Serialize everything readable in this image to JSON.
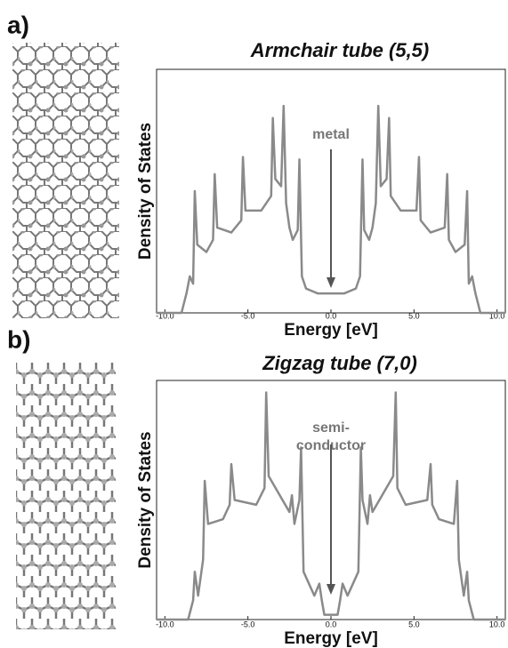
{
  "chart_data": [
    {
      "type": "line",
      "panel_label": "a)",
      "title": "Armchair tube (5,5)",
      "xlabel": "Energy [eV]",
      "ylabel": "Density of States",
      "annotation": [
        "metal"
      ],
      "xlim": [
        -10.5,
        10.5
      ],
      "ylim": [
        0,
        100
      ],
      "xticks": [
        {
          "value": -10,
          "label": "-10.0"
        },
        {
          "value": -5,
          "label": "-5.0"
        },
        {
          "value": 0,
          "label": "0.0"
        },
        {
          "value": 5,
          "label": "5.0"
        },
        {
          "value": 10,
          "label": "10.0"
        }
      ],
      "series": [
        {
          "color": "#8a8a8a",
          "x": [
            -10.5,
            -9.0,
            -8.7,
            -8.5,
            -8.3,
            -8.2,
            -8.05,
            -7.5,
            -7.1,
            -7.0,
            -6.85,
            -6.0,
            -5.4,
            -5.3,
            -5.15,
            -4.2,
            -3.6,
            -3.5,
            -3.35,
            -3.0,
            -2.85,
            -2.7,
            -2.5,
            -2.3,
            -2.0,
            -1.9,
            -1.75,
            -1.5,
            -0.8,
            0,
            0.8,
            1.5,
            1.75,
            1.9,
            2.0,
            2.3,
            2.5,
            2.7,
            2.85,
            3.0,
            3.35,
            3.5,
            3.6,
            4.2,
            5.15,
            5.3,
            5.4,
            6.0,
            6.85,
            7.0,
            7.1,
            7.5,
            8.05,
            8.2,
            8.3,
            8.5,
            8.7,
            9.0,
            10.5
          ],
          "values": [
            0,
            0,
            8,
            15,
            12,
            50,
            28,
            25,
            30,
            57,
            35,
            33,
            38,
            64,
            42,
            42,
            48,
            80,
            55,
            52,
            85,
            45,
            35,
            30,
            34,
            63,
            15,
            10,
            8,
            8,
            8,
            10,
            15,
            63,
            34,
            30,
            35,
            45,
            85,
            52,
            55,
            80,
            48,
            42,
            42,
            64,
            38,
            33,
            35,
            57,
            30,
            25,
            28,
            50,
            12,
            15,
            8,
            0,
            0
          ]
        }
      ]
    },
    {
      "type": "line",
      "panel_label": "b)",
      "title": "Zigzag tube (7,0)",
      "xlabel": "Energy [eV]",
      "ylabel": "Density of States",
      "annotation": [
        "semi-",
        "conductor"
      ],
      "xlim": [
        -10.5,
        10.5
      ],
      "ylim": [
        0,
        100
      ],
      "xticks": [
        {
          "value": -10,
          "label": "-10.0"
        },
        {
          "value": -5,
          "label": "-5.0"
        },
        {
          "value": 0,
          "label": "0.0"
        },
        {
          "value": 5,
          "label": "5.0"
        },
        {
          "value": 10,
          "label": "10.0"
        }
      ],
      "series": [
        {
          "color": "#8a8a8a",
          "x": [
            -10.5,
            -8.6,
            -8.3,
            -8.2,
            -8.0,
            -7.7,
            -7.6,
            -7.4,
            -6.5,
            -6.1,
            -6.0,
            -5.8,
            -4.5,
            -4.0,
            -3.9,
            -3.75,
            -2.5,
            -2.35,
            -2.2,
            -1.9,
            -1.8,
            -1.65,
            -1.0,
            -0.7,
            -0.55,
            -0.4,
            0,
            0.4,
            0.55,
            0.7,
            1.0,
            1.65,
            1.8,
            1.9,
            2.2,
            2.35,
            2.5,
            3.75,
            3.9,
            4.0,
            4.5,
            5.8,
            6.0,
            6.1,
            6.5,
            7.4,
            7.6,
            7.7,
            8.0,
            8.2,
            8.3,
            8.6,
            10.5
          ],
          "values": [
            0,
            0,
            8,
            20,
            10,
            25,
            58,
            40,
            42,
            48,
            65,
            50,
            48,
            55,
            95,
            60,
            45,
            52,
            40,
            50,
            72,
            20,
            10,
            15,
            8,
            2,
            2,
            2,
            8,
            15,
            10,
            20,
            72,
            50,
            40,
            52,
            45,
            60,
            95,
            55,
            48,
            50,
            65,
            48,
            42,
            40,
            58,
            25,
            10,
            20,
            8,
            0,
            0
          ]
        }
      ]
    }
  ]
}
